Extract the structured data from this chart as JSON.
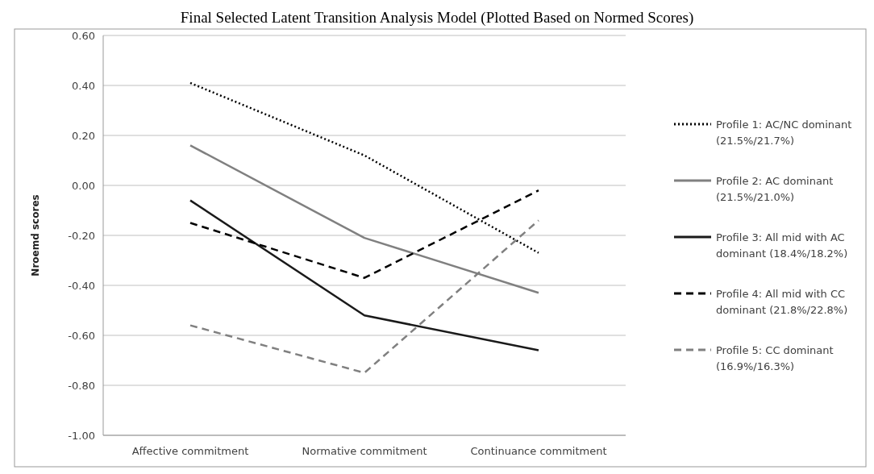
{
  "chart_data": {
    "type": "line",
    "title": "Final Selected Latent Transition Analysis Model (Plotted Based on Normed Scores)",
    "ylabel": "Nroemd scores",
    "categories": [
      "Affective commitment",
      "Normative commitment",
      "Continuance commitment"
    ],
    "series": [
      {
        "name": "Profile 1: AC/NC dominant (21.5%/21.7%)",
        "color": "#000000",
        "line_style": "dotted",
        "values": [
          0.41,
          0.12,
          -0.27
        ]
      },
      {
        "name": "Profile 2: AC dominant (21.5%/21.0%)",
        "color": "#808080",
        "line_style": "solid",
        "values": [
          0.16,
          -0.21,
          -0.43
        ]
      },
      {
        "name": "Profile 3: All mid with AC dominant (18.4%/18.2%)",
        "color": "#1a1a1a",
        "line_style": "solid",
        "values": [
          -0.06,
          -0.52,
          -0.66
        ]
      },
      {
        "name": "Profile 4: All mid with CC dominant (21.8%/22.8%)",
        "color": "#000000",
        "line_style": "dashed",
        "values": [
          -0.15,
          -0.37,
          -0.02
        ]
      },
      {
        "name": "Profile 5: CC dominant (16.9%/16.3%)",
        "color": "#808080",
        "line_style": "dashed",
        "values": [
          -0.56,
          -0.75,
          -0.14
        ]
      }
    ],
    "ylim": [
      -1,
      0.6
    ],
    "yticks": [
      {
        "value": -1,
        "label": "-1.00"
      },
      {
        "value": -0.8,
        "label": "-0.80"
      },
      {
        "value": -0.6,
        "label": "-0.60"
      },
      {
        "value": -0.4,
        "label": "-0.40"
      },
      {
        "value": -0.2,
        "label": "-0.20"
      },
      {
        "value": 0,
        "label": "0.00"
      },
      {
        "value": 0.2,
        "label": "0.20"
      },
      {
        "value": 0.4,
        "label": "0.40"
      },
      {
        "value": 0.6,
        "label": "0.60"
      }
    ],
    "grid": "y",
    "legend": "right",
    "marker": "none"
  }
}
